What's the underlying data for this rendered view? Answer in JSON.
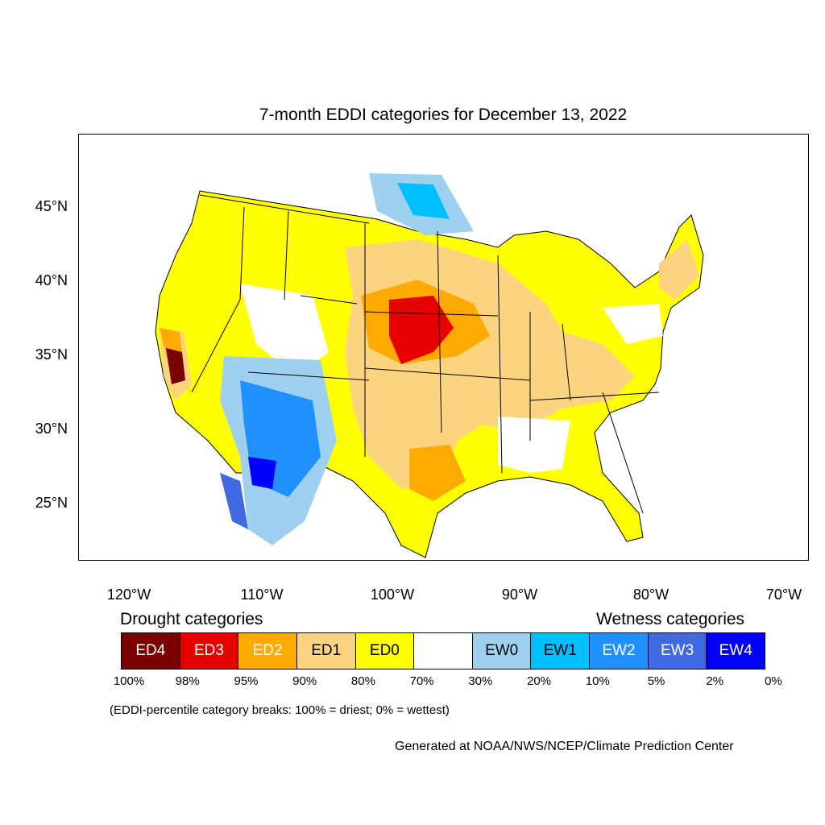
{
  "title": "7-month EDDI categories for December 13, 2022",
  "lat_labels": [
    "45°N",
    "40°N",
    "35°N",
    "30°N",
    "25°N"
  ],
  "lon_labels": [
    "120°W",
    "110°W",
    "100°W",
    "90°W",
    "80°W",
    "70°W"
  ],
  "legend": {
    "drought_heading": "Drought categories",
    "wetness_heading": "Wetness categories",
    "categories": [
      {
        "label": "ED4",
        "color": "#7b0000",
        "text_color": "#ffffff"
      },
      {
        "label": "ED3",
        "color": "#e60000",
        "text_color": "#ffffff"
      },
      {
        "label": "ED2",
        "color": "#ffaa00",
        "text_color": "#ffffff"
      },
      {
        "label": "ED1",
        "color": "#fcd37f",
        "text_color": "#000000"
      },
      {
        "label": "ED0",
        "color": "#ffff00",
        "text_color": "#000000"
      },
      {
        "label": "",
        "color": "#ffffff",
        "text_color": "#000000"
      },
      {
        "label": "EW0",
        "color": "#9ed0f0",
        "text_color": "#000000"
      },
      {
        "label": "EW1",
        "color": "#00bfff",
        "text_color": "#000000"
      },
      {
        "label": "EW2",
        "color": "#1e90ff",
        "text_color": "#ffffff"
      },
      {
        "label": "EW3",
        "color": "#4169e1",
        "text_color": "#ffffff"
      },
      {
        "label": "EW4",
        "color": "#0000ff",
        "text_color": "#ffffff"
      }
    ],
    "breaks": [
      "100%",
      "98%",
      "95%",
      "90%",
      "80%",
      "70%",
      "30%",
      "20%",
      "10%",
      "5%",
      "2%",
      "0%"
    ]
  },
  "note": "(EDDI-percentile category breaks: 100% = driest; 0% = wettest)",
  "credit": "Generated at NOAA/NWS/NCEP/Climate Prediction Center"
}
